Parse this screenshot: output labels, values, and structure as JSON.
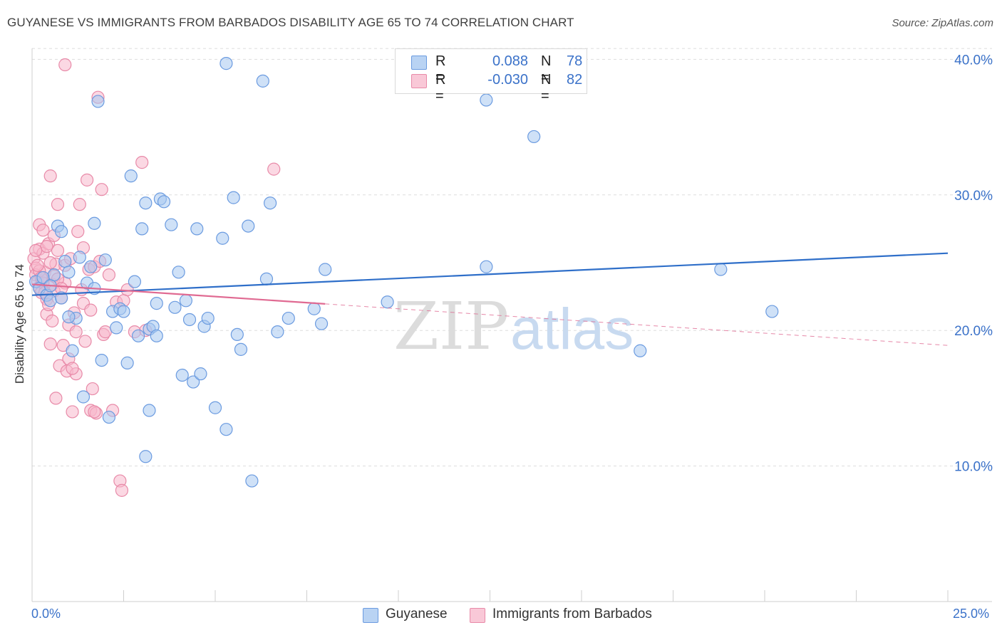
{
  "header": {
    "title": "GUYANESE VS IMMIGRANTS FROM BARBADOS DISABILITY AGE 65 TO 74 CORRELATION CHART",
    "source": "Source: ZipAtlas.com"
  },
  "legend_top": {
    "rows": [
      {
        "r_label": "R =",
        "r_value": "0.088",
        "n_label": "N =",
        "n_value": "78"
      },
      {
        "r_label": "R =",
        "r_value": "-0.030",
        "n_label": "N =",
        "n_value": "82"
      }
    ]
  },
  "x_axis": {
    "min_label": "0.0%",
    "max_label": "25.0%"
  },
  "watermark": {
    "zip": "ZIP",
    "atlas": "atlas"
  },
  "colors": {
    "guyanese_fill": "#a8c8f0",
    "guyanese_stroke": "#6b9be0",
    "guyanese_line": "#2f6fc9",
    "barbados_fill": "#f7b8cc",
    "barbados_stroke": "#e88aa8",
    "barbados_line": "#e06a92",
    "tick_text": "#3b72c9",
    "grid": "#dddddd"
  },
  "chart_data": {
    "type": "scatter",
    "title": "GUYANESE VS IMMIGRANTS FROM BARBADOS DISABILITY AGE 65 TO 74 CORRELATION CHART",
    "xlabel": "",
    "ylabel": "Disability Age 65 to 74",
    "xlim": [
      0,
      25
    ],
    "ylim": [
      0,
      42.5
    ],
    "x_unit": "%",
    "y_ticks": [
      10,
      20,
      30,
      40
    ],
    "y_tick_labels": [
      "10.0%",
      "20.0%",
      "30.0%",
      "40.0%"
    ],
    "grid": true,
    "legend_position": "bottom",
    "series": [
      {
        "name": "Guyanese",
        "r": 0.088,
        "n": 78,
        "trend": {
          "x0": 0,
          "y0": 22.6,
          "x1": 25,
          "y1": 25.7,
          "solid_to": 25
        },
        "points": [
          [
            0.1,
            23.6
          ],
          [
            0.2,
            23.1
          ],
          [
            0.4,
            22.6
          ],
          [
            0.5,
            22.2
          ],
          [
            0.6,
            24.1
          ],
          [
            0.7,
            27.7
          ],
          [
            0.8,
            27.3
          ],
          [
            0.9,
            25.1
          ],
          [
            1.0,
            24.3
          ],
          [
            1.1,
            18.5
          ],
          [
            1.2,
            20.9
          ],
          [
            1.3,
            25.4
          ],
          [
            1.4,
            15.1
          ],
          [
            1.5,
            23.5
          ],
          [
            1.6,
            24.7
          ],
          [
            1.7,
            23.1
          ],
          [
            1.7,
            27.9
          ],
          [
            1.8,
            36.9
          ],
          [
            1.9,
            17.8
          ],
          [
            2.0,
            25.2
          ],
          [
            2.1,
            13.6
          ],
          [
            2.2,
            21.4
          ],
          [
            2.3,
            20.2
          ],
          [
            2.4,
            21.6
          ],
          [
            2.5,
            21.4
          ],
          [
            2.6,
            17.6
          ],
          [
            2.7,
            31.4
          ],
          [
            2.8,
            23.6
          ],
          [
            2.9,
            19.6
          ],
          [
            3.0,
            27.5
          ],
          [
            3.1,
            29.4
          ],
          [
            3.2,
            14.1
          ],
          [
            3.1,
            10.7
          ],
          [
            3.2,
            20.1
          ],
          [
            3.3,
            20.3
          ],
          [
            3.4,
            19.6
          ],
          [
            3.4,
            22.0
          ],
          [
            3.5,
            29.7
          ],
          [
            3.6,
            29.5
          ],
          [
            3.8,
            27.8
          ],
          [
            3.9,
            21.7
          ],
          [
            4.0,
            24.3
          ],
          [
            4.1,
            16.7
          ],
          [
            4.2,
            22.2
          ],
          [
            4.3,
            20.8
          ],
          [
            4.4,
            16.2
          ],
          [
            4.5,
            27.5
          ],
          [
            4.6,
            16.8
          ],
          [
            4.7,
            20.3
          ],
          [
            4.8,
            20.9
          ],
          [
            5.0,
            14.3
          ],
          [
            5.2,
            26.8
          ],
          [
            5.3,
            12.7
          ],
          [
            5.5,
            29.8
          ],
          [
            5.6,
            19.7
          ],
          [
            5.7,
            18.6
          ],
          [
            5.9,
            27.7
          ],
          [
            6.0,
            8.9
          ],
          [
            6.3,
            38.4
          ],
          [
            6.4,
            23.8
          ],
          [
            6.5,
            29.4
          ],
          [
            6.7,
            19.9
          ],
          [
            7.0,
            20.9
          ],
          [
            7.7,
            21.6
          ],
          [
            7.9,
            20.5
          ],
          [
            8.0,
            24.5
          ],
          [
            9.7,
            22.1
          ],
          [
            12.4,
            37.0
          ],
          [
            12.4,
            24.7
          ],
          [
            13.7,
            34.3
          ],
          [
            16.6,
            18.5
          ],
          [
            18.8,
            24.5
          ],
          [
            20.2,
            21.4
          ],
          [
            5.3,
            39.7
          ],
          [
            0.3,
            23.9
          ],
          [
            0.5,
            23.3
          ],
          [
            0.8,
            22.4
          ],
          [
            1.0,
            21.0
          ]
        ]
      },
      {
        "name": "Immigrants from Barbados",
        "r": -0.03,
        "n": 82,
        "trend": {
          "x0": 0,
          "y0": 23.4,
          "x1": 25,
          "y1": 18.9,
          "solid_to": 8.0
        },
        "points": [
          [
            0.05,
            25.3
          ],
          [
            0.1,
            24.6
          ],
          [
            0.1,
            24.1
          ],
          [
            0.15,
            23.6
          ],
          [
            0.2,
            23.2
          ],
          [
            0.2,
            26.0
          ],
          [
            0.2,
            27.8
          ],
          [
            0.25,
            22.8
          ],
          [
            0.3,
            23.7
          ],
          [
            0.3,
            25.7
          ],
          [
            0.35,
            24.3
          ],
          [
            0.4,
            21.2
          ],
          [
            0.4,
            22.3
          ],
          [
            0.45,
            26.4
          ],
          [
            0.5,
            19.0
          ],
          [
            0.5,
            31.4
          ],
          [
            0.55,
            23.4
          ],
          [
            0.6,
            27.0
          ],
          [
            0.6,
            22.9
          ],
          [
            0.65,
            24.9
          ],
          [
            0.7,
            29.3
          ],
          [
            0.7,
            25.9
          ],
          [
            0.75,
            17.4
          ],
          [
            0.8,
            22.4
          ],
          [
            0.85,
            18.9
          ],
          [
            0.9,
            24.8
          ],
          [
            0.9,
            23.5
          ],
          [
            0.95,
            17.0
          ],
          [
            1.0,
            17.9
          ],
          [
            1.0,
            20.4
          ],
          [
            1.05,
            25.3
          ],
          [
            1.1,
            14.0
          ],
          [
            1.15,
            21.3
          ],
          [
            1.2,
            19.9
          ],
          [
            1.25,
            27.3
          ],
          [
            1.3,
            29.3
          ],
          [
            1.35,
            23.0
          ],
          [
            1.4,
            22.0
          ],
          [
            1.45,
            19.2
          ],
          [
            1.5,
            31.1
          ],
          [
            1.55,
            24.5
          ],
          [
            1.6,
            14.1
          ],
          [
            1.65,
            15.7
          ],
          [
            1.7,
            24.7
          ],
          [
            1.75,
            13.9
          ],
          [
            1.8,
            37.2
          ],
          [
            1.85,
            25.1
          ],
          [
            1.9,
            30.4
          ],
          [
            1.95,
            19.7
          ],
          [
            2.0,
            19.9
          ],
          [
            2.1,
            24.1
          ],
          [
            2.2,
            14.1
          ],
          [
            2.3,
            22.1
          ],
          [
            2.4,
            8.9
          ],
          [
            2.45,
            8.2
          ],
          [
            2.6,
            23.0
          ],
          [
            2.8,
            19.9
          ],
          [
            3.0,
            32.4
          ],
          [
            3.1,
            20.0
          ],
          [
            0.9,
            39.6
          ],
          [
            6.6,
            31.9
          ],
          [
            0.3,
            27.4
          ],
          [
            0.4,
            26.2
          ],
          [
            0.5,
            25.0
          ],
          [
            0.6,
            24.0
          ],
          [
            0.7,
            23.8
          ],
          [
            0.8,
            23.1
          ],
          [
            0.2,
            24.4
          ],
          [
            0.3,
            23.5
          ],
          [
            0.15,
            24.8
          ],
          [
            0.25,
            23.9
          ],
          [
            0.35,
            22.8
          ],
          [
            0.45,
            21.9
          ],
          [
            0.55,
            20.7
          ],
          [
            1.2,
            16.8
          ],
          [
            1.7,
            14.0
          ],
          [
            2.5,
            22.2
          ],
          [
            1.1,
            17.2
          ],
          [
            0.65,
            15.0
          ],
          [
            1.4,
            26.1
          ],
          [
            0.1,
            25.9
          ],
          [
            1.6,
            21.5
          ]
        ]
      }
    ]
  }
}
